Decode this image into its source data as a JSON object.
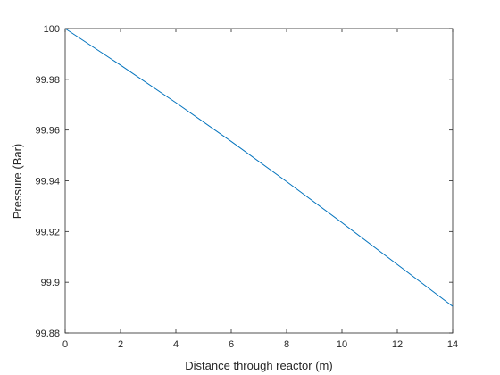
{
  "chart_data": {
    "type": "line",
    "title": "",
    "xlabel": "Distance through reactor (m)",
    "ylabel": "Pressure (Bar)",
    "xlim": [
      0,
      14
    ],
    "ylim": [
      99.88,
      100
    ],
    "grid": false,
    "x_ticks": [
      0,
      2,
      4,
      6,
      8,
      10,
      12,
      14
    ],
    "x_tick_labels": [
      "0",
      "2",
      "4",
      "6",
      "8",
      "10",
      "12",
      "14"
    ],
    "y_ticks": [
      99.88,
      99.9,
      99.92,
      99.94,
      99.96,
      99.98,
      100
    ],
    "y_tick_labels": [
      "99.88",
      "99.9",
      "99.92",
      "99.94",
      "99.96",
      "99.98",
      "100"
    ],
    "series": [
      {
        "color": "#0072bd",
        "x": [
          0,
          2,
          4,
          6,
          8,
          10,
          12,
          14
        ],
        "y": [
          100,
          99.9856,
          99.9708,
          99.9555,
          99.9397,
          99.9235,
          99.907,
          99.8905
        ]
      }
    ]
  }
}
